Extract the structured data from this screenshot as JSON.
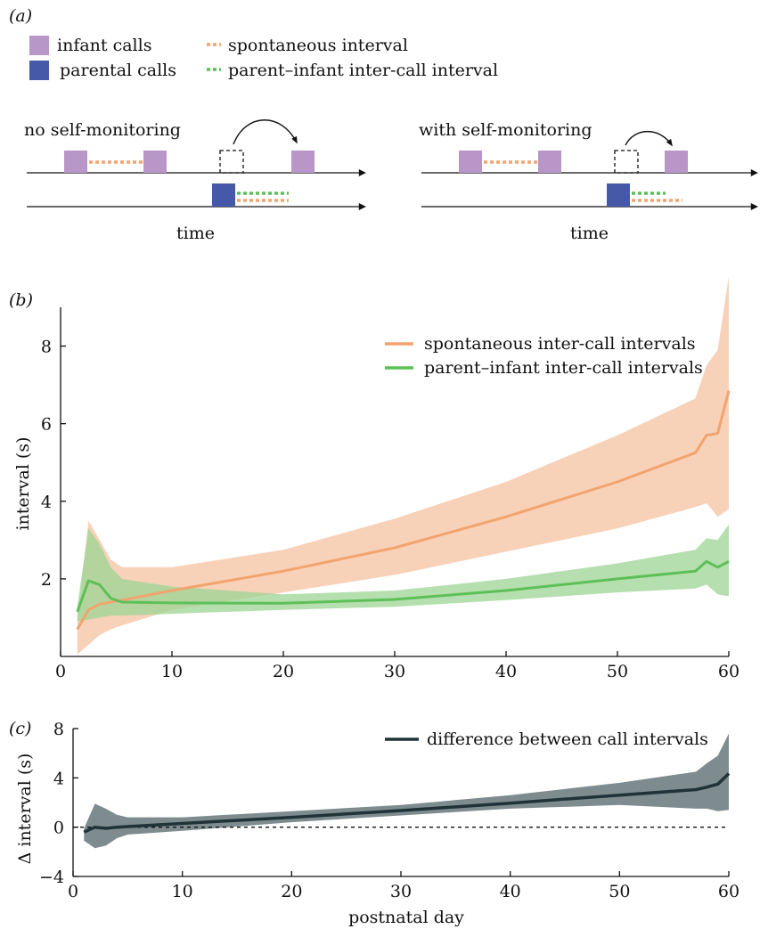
{
  "colors": {
    "infant": "#b896c8",
    "parental": "#4659a8",
    "spontaneous": "#f2a46e",
    "spontaneous_band": "#f7c9ad",
    "parent_infant": "#5cc057",
    "parent_infant_band": "#9ed495",
    "difference": "#1f3338",
    "difference_band": "#7e8c90"
  },
  "panel_a": {
    "label": "(a)",
    "legend": {
      "infant_calls": "infant calls",
      "parental_calls": "parental calls",
      "spontaneous_interval": "spontaneous interval",
      "parent_infant_interval": "parent–infant inter-call interval"
    },
    "left_title": "no self-monitoring",
    "right_title": "with self-monitoring",
    "time_label": "time"
  },
  "chart_data": [
    {
      "panel": "(b)",
      "type": "line",
      "xlabel": "",
      "ylabel": "interval (s)",
      "xlim": [
        0,
        60
      ],
      "ylim": [
        0,
        9
      ],
      "xticks": [
        0,
        10,
        20,
        30,
        40,
        50,
        60
      ],
      "yticks": [
        2,
        4,
        6,
        8
      ],
      "legend_position": "top-right",
      "series": [
        {
          "name": "spontaneous inter-call intervals",
          "x": [
            1.5,
            2.5,
            3.5,
            4.5,
            5.5,
            10,
            20,
            30,
            40,
            50,
            57,
            58,
            59,
            60
          ],
          "y": [
            0.7,
            1.2,
            1.35,
            1.4,
            1.45,
            1.7,
            2.2,
            2.8,
            3.6,
            4.5,
            5.25,
            5.7,
            5.75,
            6.85
          ],
          "lower": [
            0.05,
            0.3,
            0.55,
            0.7,
            0.8,
            1.2,
            1.65,
            2.1,
            2.7,
            3.3,
            3.85,
            3.95,
            3.6,
            3.8
          ],
          "upper": [
            0.9,
            3.5,
            3.0,
            2.5,
            2.3,
            2.3,
            2.75,
            3.55,
            4.5,
            5.7,
            6.65,
            7.5,
            7.9,
            9.8
          ]
        },
        {
          "name": "parent–infant inter-call intervals",
          "x": [
            1.5,
            2.5,
            3.5,
            4.5,
            5.5,
            10,
            20,
            30,
            40,
            50,
            57,
            58,
            59,
            60
          ],
          "y": [
            1.15,
            1.95,
            1.85,
            1.5,
            1.4,
            1.38,
            1.37,
            1.47,
            1.7,
            2.0,
            2.2,
            2.45,
            2.3,
            2.45
          ],
          "lower": [
            0.9,
            0.95,
            1.0,
            1.05,
            1.05,
            1.1,
            1.2,
            1.28,
            1.45,
            1.65,
            1.75,
            1.85,
            1.6,
            1.55
          ],
          "upper": [
            1.3,
            3.3,
            2.9,
            2.3,
            2.0,
            1.8,
            1.6,
            1.7,
            2.0,
            2.4,
            2.75,
            3.05,
            3.0,
            3.4
          ]
        }
      ]
    },
    {
      "panel": "(c)",
      "type": "line",
      "xlabel": "postnatal day",
      "ylabel": "Δ interval (s)",
      "xlim": [
        0,
        60
      ],
      "ylim": [
        -4,
        8
      ],
      "xticks": [
        0,
        10,
        20,
        30,
        40,
        50,
        60
      ],
      "yticks": [
        -4,
        0,
        4,
        8
      ],
      "reference_line": 0,
      "legend_position": "top-right",
      "series": [
        {
          "name": "difference between call intervals",
          "x": [
            1,
            2,
            3,
            4,
            5,
            10,
            20,
            30,
            40,
            50,
            57,
            58,
            59,
            60
          ],
          "y": [
            -0.4,
            0.0,
            -0.1,
            0.0,
            0.05,
            0.3,
            0.8,
            1.35,
            1.95,
            2.6,
            3.05,
            3.25,
            3.5,
            4.35
          ],
          "lower": [
            -1.1,
            -1.7,
            -1.5,
            -0.9,
            -0.6,
            -0.3,
            0.4,
            0.95,
            1.5,
            1.8,
            1.5,
            1.5,
            1.3,
            1.4
          ],
          "upper": [
            -0.1,
            1.9,
            1.5,
            1.0,
            0.8,
            0.8,
            1.3,
            1.8,
            2.6,
            3.6,
            4.5,
            5.2,
            5.8,
            7.6
          ]
        }
      ]
    }
  ]
}
